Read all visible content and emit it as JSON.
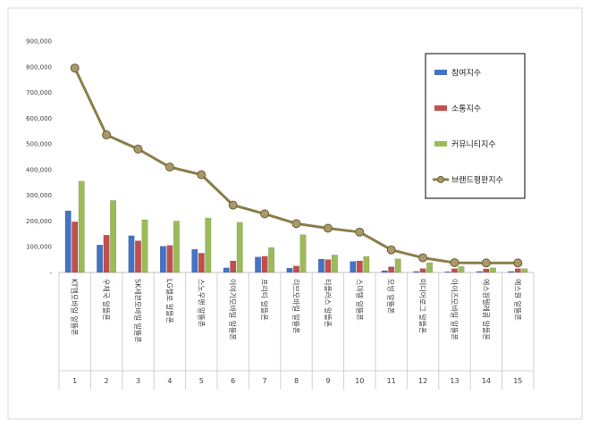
{
  "chart_data": {
    "type": "bar",
    "ylim": [
      0,
      900000
    ],
    "yticks": [
      "-",
      "100,000",
      "200,000",
      "300,000",
      "400,000",
      "500,000",
      "600,000",
      "700,000",
      "800,000",
      "900,000"
    ],
    "ytick_values": [
      0,
      100000,
      200000,
      300000,
      400000,
      500000,
      600000,
      700000,
      800000,
      900000
    ],
    "categories": [
      "KT엠모바일 알뜰폰",
      "우체국 알뜰폰",
      "SK세븐모바일 알뜰폰",
      "LG헬로 알뜰폰",
      "스노우맨 알뜰폰",
      "이야기모바일 알뜰폰",
      "프리티 알뜰폰",
      "리브모바일 알뜰폰",
      "티플러스 알뜰폰",
      "스마텔 알뜰폰",
      "모빙 알뜰폰",
      "미디어로그 알뜰폰",
      "아이즈모바일 알뜰폰",
      "에스원텔레콤 알뜰폰",
      "에스원 알뜰폰"
    ],
    "ranks": [
      "1",
      "2",
      "3",
      "4",
      "5",
      "6",
      "7",
      "8",
      "9",
      "10",
      "11",
      "12",
      "13",
      "14",
      "15"
    ],
    "series": [
      {
        "name": "참여지수",
        "values": [
          240000,
          107000,
          143000,
          102000,
          90000,
          18000,
          60000,
          17000,
          52000,
          43000,
          7000,
          4000,
          3000,
          4000,
          4000
        ],
        "color": "#4472C4"
      },
      {
        "name": "소통지수",
        "values": [
          197000,
          145000,
          123000,
          105000,
          75000,
          45000,
          63000,
          25000,
          50000,
          45000,
          22000,
          15000,
          15000,
          14000,
          15000
        ],
        "color": "#C0504D"
      },
      {
        "name": "커뮤니티지수",
        "values": [
          355000,
          280000,
          205000,
          200000,
          212000,
          195000,
          97000,
          147000,
          68000,
          62000,
          53000,
          38000,
          23000,
          18000,
          15000
        ],
        "color": "#9BBB59"
      },
      {
        "name": "브랜드평판지수",
        "type": "line",
        "values": [
          795000,
          535000,
          480000,
          410000,
          380000,
          262000,
          228000,
          190000,
          172000,
          157000,
          88000,
          57000,
          38000,
          37000,
          37000
        ],
        "color": "#8B7D4A"
      }
    ],
    "legend_position": "right",
    "grid": false
  }
}
